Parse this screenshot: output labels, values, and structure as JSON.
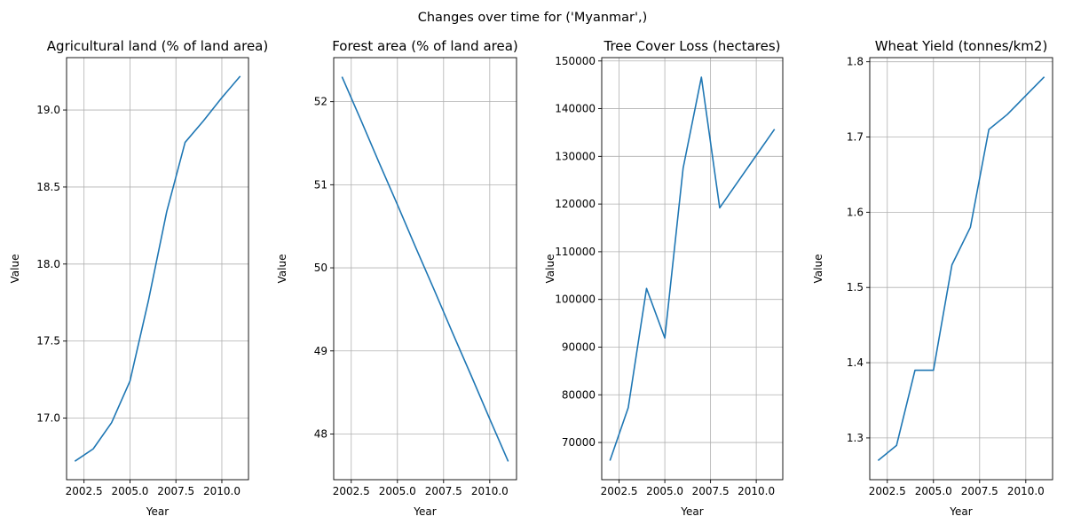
{
  "figure": {
    "suptitle": "Changes over time for ('Myanmar',)"
  },
  "style": {
    "line_color": "#1f77b4",
    "grid_color": "#b0b0b0",
    "axis_color": "#000000"
  },
  "chart_data": [
    {
      "type": "line",
      "title": "Agricultural land (% of land area)",
      "xlabel": "Year",
      "ylabel": "Value",
      "grid": true,
      "xlim": [
        2001.55,
        2011.45
      ],
      "ylim": [
        16.6,
        19.34
      ],
      "xticks": [
        2002.5,
        2005.0,
        2007.5,
        2010.0
      ],
      "xtick_labels": [
        "2002.5",
        "2005.0",
        "2007.5",
        "2010.0"
      ],
      "yticks": [
        17.0,
        17.5,
        18.0,
        18.5,
        19.0
      ],
      "ytick_labels": [
        "17.0",
        "17.5",
        "18.0",
        "18.5",
        "19.0"
      ],
      "series": [
        {
          "x": [
            2002,
            2003,
            2004,
            2005,
            2006,
            2007,
            2008,
            2009,
            2010,
            2011
          ],
          "y": [
            16.72,
            16.8,
            16.97,
            17.24,
            17.76,
            18.34,
            18.79,
            18.93,
            19.08,
            19.22
          ]
        }
      ]
    },
    {
      "type": "line",
      "title": "Forest area (% of land area)",
      "xlabel": "Year",
      "ylabel": "Value",
      "grid": true,
      "xlim": [
        2001.55,
        2011.45
      ],
      "ylim": [
        47.45,
        52.53
      ],
      "xticks": [
        2002.5,
        2005.0,
        2007.5,
        2010.0
      ],
      "xtick_labels": [
        "2002.5",
        "2005.0",
        "2007.5",
        "2010.0"
      ],
      "yticks": [
        48,
        49,
        50,
        51,
        52
      ],
      "ytick_labels": [
        "48",
        "49",
        "50",
        "51",
        "52"
      ],
      "series": [
        {
          "x": [
            2002,
            2003,
            2004,
            2005,
            2006,
            2007,
            2008,
            2009,
            2010,
            2011
          ],
          "y": [
            52.3,
            51.79,
            51.27,
            50.76,
            50.24,
            49.73,
            49.21,
            48.7,
            48.18,
            47.67
          ]
        }
      ]
    },
    {
      "type": "line",
      "title": "Tree Cover Loss (hectares)",
      "xlabel": "Year",
      "ylabel": "Value",
      "grid": true,
      "xlim": [
        2001.55,
        2011.45
      ],
      "ylim": [
        62200,
        150700
      ],
      "xticks": [
        2002.5,
        2005.0,
        2007.5,
        2010.0
      ],
      "xtick_labels": [
        "2002.5",
        "2005.0",
        "2007.5",
        "2010.0"
      ],
      "yticks": [
        70000,
        80000,
        90000,
        100000,
        110000,
        120000,
        130000,
        140000,
        150000
      ],
      "ytick_labels": [
        "70000",
        "80000",
        "90000",
        "100000",
        "110000",
        "120000",
        "130000",
        "140000",
        "150000"
      ],
      "series": [
        {
          "x": [
            2002,
            2003,
            2004,
            2005,
            2006,
            2007,
            2008,
            2009,
            2010,
            2011
          ],
          "y": [
            66200,
            77300,
            102300,
            91900,
            127500,
            146600,
            119200,
            124700,
            130200,
            135700
          ]
        }
      ]
    },
    {
      "type": "line",
      "title": "Wheat Yield (tonnes/km2)",
      "xlabel": "Year",
      "ylabel": "Value",
      "grid": true,
      "xlim": [
        2001.55,
        2011.45
      ],
      "ylim": [
        1.2445,
        1.8055
      ],
      "xticks": [
        2002.5,
        2005.0,
        2007.5,
        2010.0
      ],
      "xtick_labels": [
        "2002.5",
        "2005.0",
        "2007.5",
        "2010.0"
      ],
      "yticks": [
        1.3,
        1.4,
        1.5,
        1.6,
        1.7,
        1.8
      ],
      "ytick_labels": [
        "1.3",
        "1.4",
        "1.5",
        "1.6",
        "1.7",
        "1.8"
      ],
      "series": [
        {
          "x": [
            2002,
            2003,
            2004,
            2005,
            2006,
            2007,
            2008,
            2009,
            2010,
            2011
          ],
          "y": [
            1.27,
            1.29,
            1.39,
            1.39,
            1.53,
            1.58,
            1.71,
            1.73,
            1.755,
            1.78
          ]
        }
      ]
    }
  ]
}
